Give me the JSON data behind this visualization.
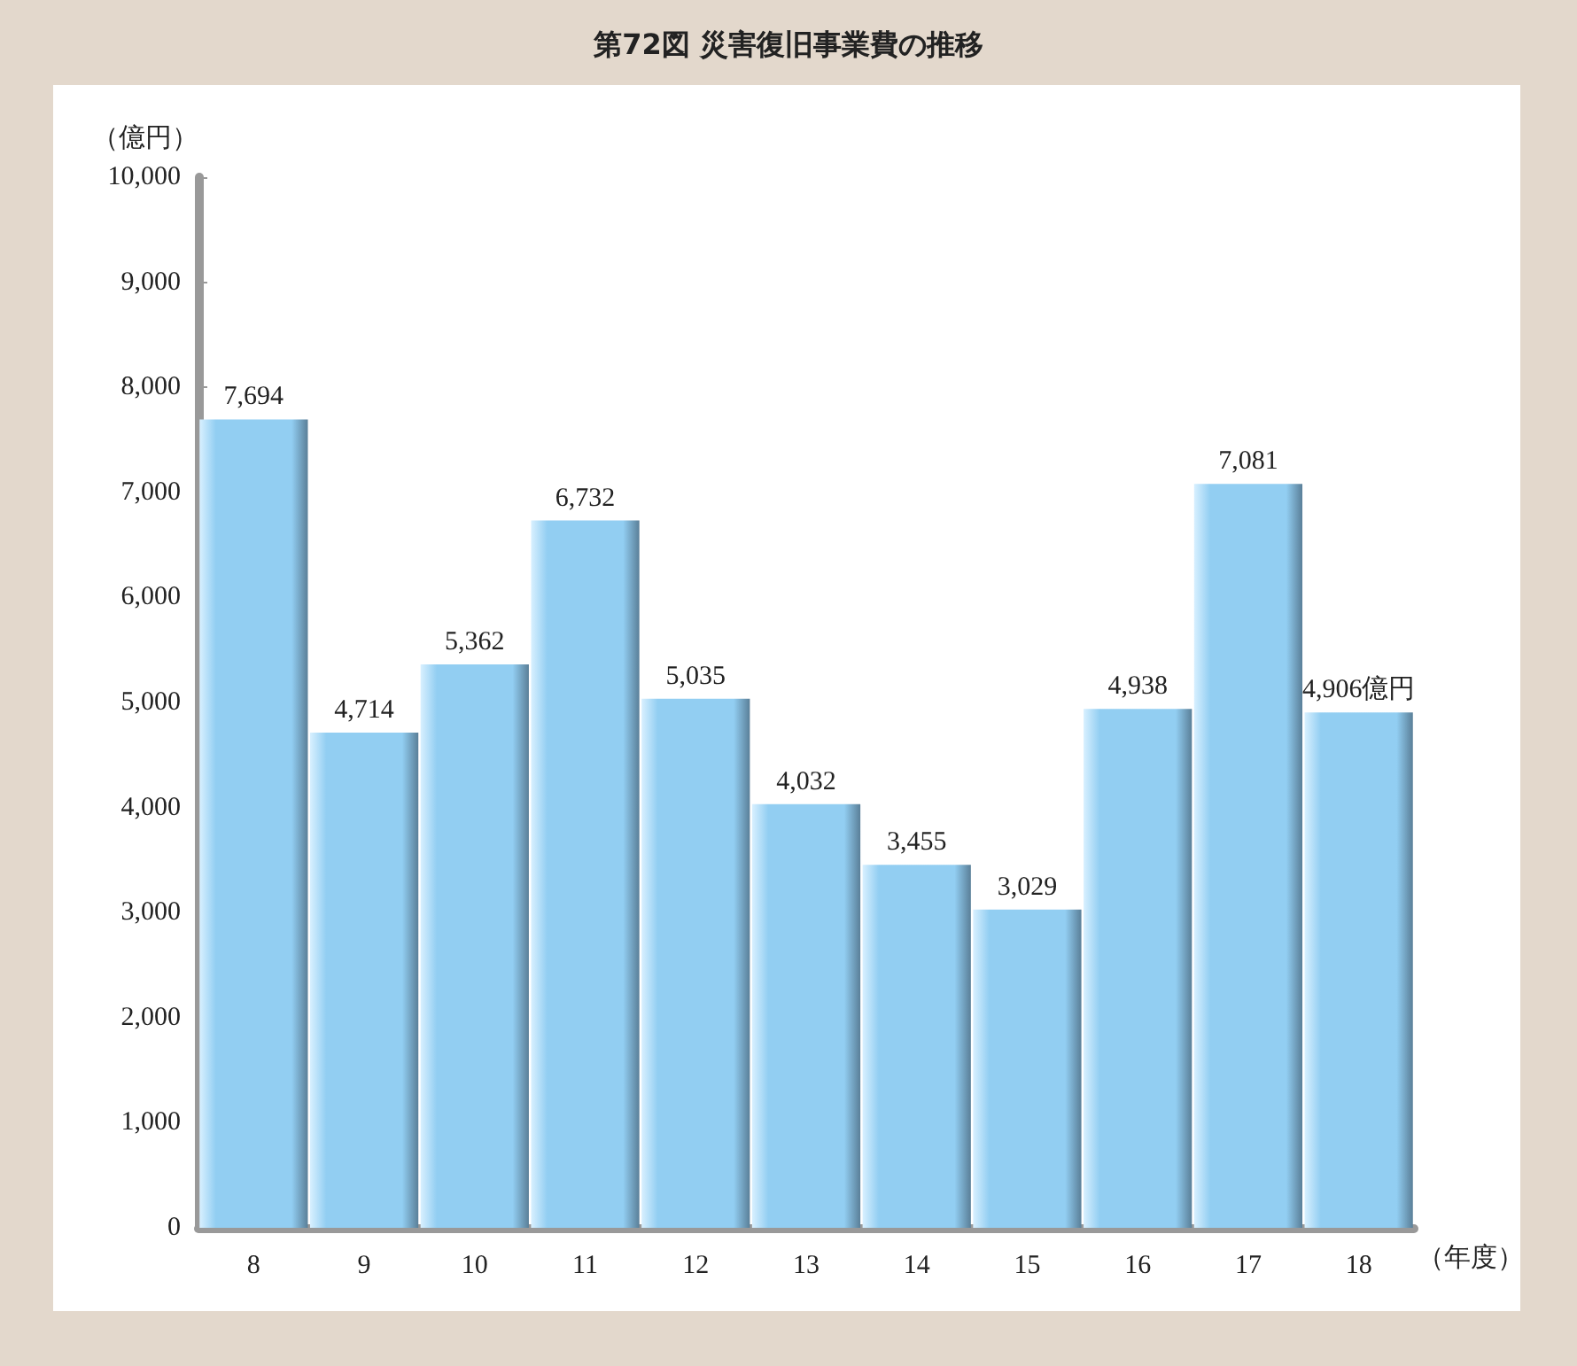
{
  "chart_data": {
    "type": "bar",
    "title": "第72図 災害復旧事業費の推移",
    "ylabel": "（億円）",
    "xlabel": "（年度）",
    "categories": [
      "8",
      "9",
      "10",
      "11",
      "12",
      "13",
      "14",
      "15",
      "16",
      "17",
      "18"
    ],
    "values": [
      7694,
      4714,
      5362,
      6732,
      5035,
      4032,
      3455,
      3029,
      4938,
      7081,
      4906
    ],
    "value_labels": [
      "7,694",
      "4,714",
      "5,362",
      "6,732",
      "5,035",
      "4,032",
      "3,455",
      "3,029",
      "4,938",
      "7,081",
      "4,906億円"
    ],
    "color": "#92cef2",
    "ylim": [
      0,
      10000
    ],
    "yticks": [
      0,
      {
        "value": 1000,
        "label": "1,000"
      },
      {
        "value": 2000,
        "label": "2,000"
      },
      {
        "value": 3000,
        "label": "3,000"
      },
      {
        "value": 4000,
        "label": "4,000"
      },
      {
        "value": 5000,
        "label": "5,000"
      },
      {
        "value": 6000,
        "label": "6,000"
      },
      {
        "value": 7000,
        "label": "7,000"
      },
      {
        "value": 8000,
        "label": "8,000"
      },
      {
        "value": 9000,
        "label": "9,000"
      },
      {
        "value": 10000,
        "label": "10,000"
      }
    ],
    "grid": false
  }
}
